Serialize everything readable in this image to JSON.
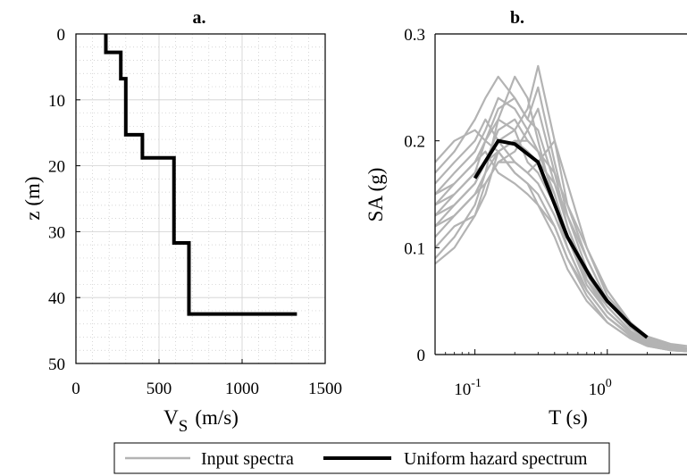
{
  "chart_data": [
    {
      "type": "line",
      "title": "a.",
      "xlabel_main": "V",
      "xlabel_sub": "S",
      "xlabel_unit": "(m/s)",
      "ylabel": "z (m)",
      "xlim": [
        0,
        1500
      ],
      "ylim": [
        0,
        50
      ],
      "y_reversed": true,
      "xticks": [
        "0",
        "500",
        "1000",
        "1500"
      ],
      "yticks": [
        "0",
        "10",
        "20",
        "30",
        "40",
        "50"
      ],
      "grid": "major and minor dotted",
      "color": "#000000",
      "profile": {
        "vs": [
          180,
          180,
          270,
          270,
          300,
          300,
          400,
          400,
          590,
          590,
          680,
          680,
          1330
        ],
        "z": [
          0,
          2.8,
          2.8,
          6.8,
          6.8,
          15.3,
          15.3,
          18.8,
          18.8,
          31.7,
          31.7,
          42.5,
          42.5
        ]
      }
    },
    {
      "type": "line",
      "title": "b.",
      "xlabel": "T (s)",
      "ylabel": "SA (g)",
      "xscale": "log",
      "xlim": [
        0.05,
        4
      ],
      "ylim": [
        0,
        0.3
      ],
      "xticks": [
        "10",
        "10"
      ],
      "xtick_exponents": [
        "-1",
        "0"
      ],
      "yticks": [
        "0",
        "0.1",
        "0.2",
        "0.3"
      ],
      "grid": "off",
      "input_spectra_color": "#b3b3b3",
      "uhs_color": "#000000",
      "input_spectra": {
        "T": [
          0.05,
          0.07,
          0.1,
          0.12,
          0.15,
          0.2,
          0.25,
          0.3,
          0.4,
          0.5,
          0.7,
          1.0,
          1.5,
          2.0,
          3.0,
          4.0
        ],
        "series": [
          [
            0.085,
            0.1,
            0.13,
            0.15,
            0.19,
            0.17,
            0.16,
            0.14,
            0.11,
            0.08,
            0.05,
            0.03,
            0.015,
            0.008,
            0.004,
            0.003
          ],
          [
            0.09,
            0.11,
            0.14,
            0.17,
            0.22,
            0.26,
            0.24,
            0.2,
            0.14,
            0.1,
            0.06,
            0.035,
            0.018,
            0.01,
            0.006,
            0.004
          ],
          [
            0.1,
            0.12,
            0.13,
            0.16,
            0.18,
            0.19,
            0.21,
            0.23,
            0.17,
            0.12,
            0.07,
            0.04,
            0.02,
            0.012,
            0.007,
            0.005
          ],
          [
            0.11,
            0.13,
            0.15,
            0.17,
            0.19,
            0.2,
            0.19,
            0.18,
            0.16,
            0.13,
            0.09,
            0.05,
            0.025,
            0.014,
            0.008,
            0.005
          ],
          [
            0.12,
            0.14,
            0.16,
            0.18,
            0.21,
            0.22,
            0.2,
            0.19,
            0.15,
            0.11,
            0.07,
            0.045,
            0.022,
            0.012,
            0.006,
            0.004
          ],
          [
            0.13,
            0.15,
            0.17,
            0.2,
            0.23,
            0.24,
            0.22,
            0.25,
            0.18,
            0.13,
            0.08,
            0.05,
            0.028,
            0.016,
            0.009,
            0.006
          ],
          [
            0.14,
            0.16,
            0.18,
            0.19,
            0.17,
            0.16,
            0.15,
            0.14,
            0.12,
            0.09,
            0.06,
            0.035,
            0.017,
            0.009,
            0.005,
            0.003
          ],
          [
            0.15,
            0.17,
            0.19,
            0.21,
            0.24,
            0.23,
            0.21,
            0.19,
            0.15,
            0.11,
            0.065,
            0.04,
            0.02,
            0.011,
            0.006,
            0.004
          ],
          [
            0.16,
            0.18,
            0.2,
            0.22,
            0.2,
            0.18,
            0.17,
            0.16,
            0.13,
            0.1,
            0.06,
            0.035,
            0.018,
            0.01,
            0.005,
            0.003
          ],
          [
            0.12,
            0.13,
            0.15,
            0.16,
            0.18,
            0.18,
            0.17,
            0.18,
            0.2,
            0.16,
            0.1,
            0.06,
            0.03,
            0.016,
            0.009,
            0.006
          ],
          [
            0.13,
            0.14,
            0.16,
            0.18,
            0.2,
            0.21,
            0.23,
            0.27,
            0.2,
            0.14,
            0.09,
            0.05,
            0.025,
            0.013,
            0.007,
            0.005
          ],
          [
            0.14,
            0.15,
            0.17,
            0.18,
            0.19,
            0.2,
            0.2,
            0.19,
            0.17,
            0.14,
            0.1,
            0.055,
            0.03,
            0.017,
            0.01,
            0.008
          ],
          [
            0.15,
            0.16,
            0.18,
            0.2,
            0.22,
            0.21,
            0.18,
            0.17,
            0.14,
            0.11,
            0.07,
            0.04,
            0.02,
            0.011,
            0.006,
            0.005
          ],
          [
            0.17,
            0.19,
            0.22,
            0.24,
            0.26,
            0.24,
            0.22,
            0.21,
            0.16,
            0.12,
            0.075,
            0.045,
            0.022,
            0.012,
            0.006,
            0.004
          ],
          [
            0.18,
            0.2,
            0.21,
            0.2,
            0.19,
            0.17,
            0.16,
            0.15,
            0.12,
            0.09,
            0.055,
            0.03,
            0.015,
            0.008,
            0.004,
            0.003
          ]
        ]
      },
      "uhs": {
        "T": [
          0.1,
          0.15,
          0.2,
          0.3,
          0.5,
          0.75,
          1.0,
          1.5,
          2.0
        ],
        "SA": [
          0.165,
          0.2,
          0.197,
          0.18,
          0.11,
          0.072,
          0.05,
          0.028,
          0.016
        ]
      }
    }
  ],
  "legend": {
    "placement": "bottom-center",
    "entries": [
      {
        "label": "Input spectra",
        "color": "#b3b3b3"
      },
      {
        "label": "Uniform hazard spectrum",
        "color": "#000000"
      }
    ]
  }
}
